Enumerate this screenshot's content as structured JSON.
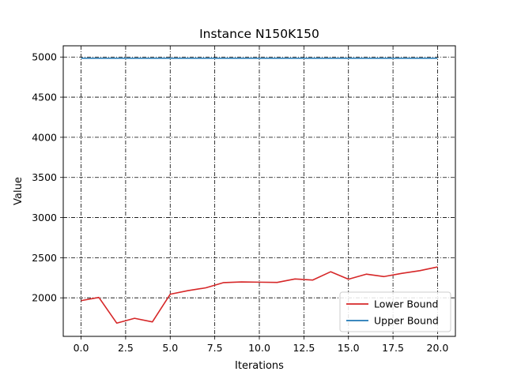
{
  "chart_data": {
    "type": "line",
    "title": "Instance N150K150",
    "xlabel": "Iterations",
    "ylabel": "Value",
    "xlim": [
      -1.0,
      21.0
    ],
    "ylim": [
      1520,
      5140
    ],
    "xticks": [
      0,
      2.5,
      5,
      7.5,
      10,
      12.5,
      15,
      17.5,
      20
    ],
    "xtick_labels": [
      "0.0",
      "2.5",
      "5.0",
      "7.5",
      "10.0",
      "12.5",
      "15.0",
      "17.5",
      "20.0"
    ],
    "yticks": [
      2000,
      2500,
      3000,
      3500,
      4000,
      4500,
      5000
    ],
    "ytick_labels": [
      "2000",
      "2500",
      "3000",
      "3500",
      "4000",
      "4500",
      "5000"
    ],
    "grid": true,
    "legend_position": "lower-right",
    "x": [
      0,
      1,
      2,
      3,
      4,
      5,
      6,
      7,
      8,
      9,
      10,
      11,
      12,
      13,
      14,
      15,
      16,
      17,
      18,
      19,
      20
    ],
    "series": [
      {
        "name": "Lower Bound",
        "color": "#d62728",
        "values": [
          1965,
          2005,
          1685,
          1745,
          1700,
          2045,
          2090,
          2125,
          2190,
          2198,
          2195,
          2192,
          2235,
          2222,
          2325,
          2232,
          2295,
          2265,
          2305,
          2338,
          2385
        ]
      },
      {
        "name": "Upper Bound",
        "color": "#1f77b4",
        "values": [
          4985,
          4985,
          4985,
          4985,
          4985,
          4985,
          4985,
          4985,
          4985,
          4985,
          4985,
          4985,
          4985,
          4985,
          4985,
          4985,
          4985,
          4985,
          4985,
          4985,
          4985
        ]
      }
    ]
  }
}
